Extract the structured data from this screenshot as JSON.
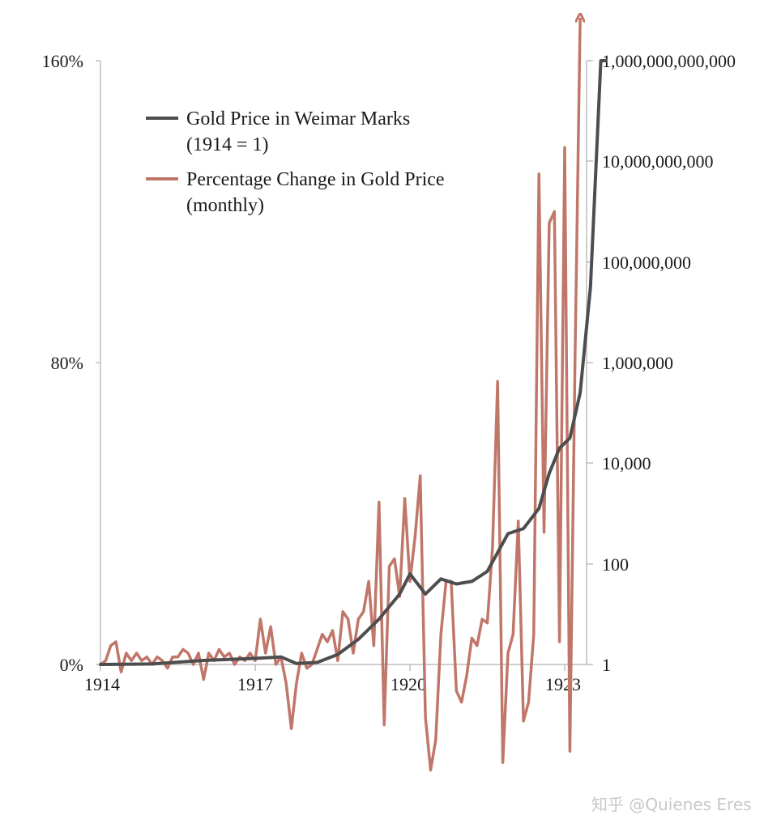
{
  "chart_data": {
    "type": "line",
    "title": "",
    "x_ticks": [
      "1914",
      "1917",
      "1920",
      "1923"
    ],
    "x_range": [
      1914,
      1923.4
    ],
    "y_left": {
      "range_percent": [
        0,
        160
      ],
      "ticks": [
        "160%",
        "80%",
        "0%"
      ],
      "tick_values": [
        160,
        80,
        0
      ]
    },
    "y_right": {
      "scale": "log",
      "range_power": [
        0,
        12
      ],
      "ticks": [
        "1,000,000,000,000",
        "10,000,000,000",
        "100,000,000",
        "1,000,000",
        "10,000",
        "100",
        "1"
      ],
      "tick_powers": [
        12,
        10,
        8,
        6,
        4,
        2,
        0
      ]
    },
    "legend": [
      {
        "label": "Gold Price in Weimar Marks",
        "sublabel": "(1914 = 1)",
        "color": "#4d4d4d"
      },
      {
        "label": "Percentage Change in Gold Price",
        "sublabel": "(monthly)",
        "color": "#c0776a"
      }
    ],
    "series": [
      {
        "name": "Gold Price in Weimar Marks (1914 = 1)",
        "axis": "right",
        "unit": "log10 of price",
        "color": "#4d4d4d",
        "points": [
          [
            1914.0,
            0
          ],
          [
            1915.0,
            0.01
          ],
          [
            1916.0,
            0.08
          ],
          [
            1916.5,
            0.1
          ],
          [
            1917.0,
            0.12
          ],
          [
            1917.5,
            0.15
          ],
          [
            1917.8,
            0.02
          ],
          [
            1918.2,
            0.04
          ],
          [
            1918.6,
            0.2
          ],
          [
            1919.0,
            0.5
          ],
          [
            1919.4,
            0.9
          ],
          [
            1919.8,
            1.4
          ],
          [
            1920.0,
            1.8
          ],
          [
            1920.3,
            1.4
          ],
          [
            1920.6,
            1.7
          ],
          [
            1920.9,
            1.6
          ],
          [
            1921.2,
            1.65
          ],
          [
            1921.5,
            1.85
          ],
          [
            1921.9,
            2.6
          ],
          [
            1922.2,
            2.7
          ],
          [
            1922.5,
            3.1
          ],
          [
            1922.7,
            3.8
          ],
          [
            1922.9,
            4.3
          ],
          [
            1923.1,
            4.5
          ],
          [
            1923.3,
            5.4
          ],
          [
            1923.5,
            7.5
          ],
          [
            1923.7,
            12
          ],
          [
            1923.8,
            12
          ]
        ]
      },
      {
        "name": "Percentage Change in Gold Price (monthly)",
        "axis": "left",
        "unit": "percent",
        "color": "#c0776a",
        "overflow_arrow": true,
        "points": [
          [
            1914.0,
            0
          ],
          [
            1914.1,
            1
          ],
          [
            1914.2,
            5
          ],
          [
            1914.3,
            6
          ],
          [
            1914.4,
            -2
          ],
          [
            1914.5,
            3
          ],
          [
            1914.6,
            1
          ],
          [
            1914.7,
            3
          ],
          [
            1914.8,
            1
          ],
          [
            1914.9,
            2
          ],
          [
            1915.0,
            0
          ],
          [
            1915.1,
            2
          ],
          [
            1915.2,
            1
          ],
          [
            1915.3,
            -1
          ],
          [
            1915.4,
            2
          ],
          [
            1915.5,
            2
          ],
          [
            1915.6,
            4
          ],
          [
            1915.7,
            3
          ],
          [
            1915.8,
            0
          ],
          [
            1915.9,
            3
          ],
          [
            1916.0,
            -4
          ],
          [
            1916.1,
            3
          ],
          [
            1916.2,
            1
          ],
          [
            1916.3,
            4
          ],
          [
            1916.4,
            2
          ],
          [
            1916.5,
            3
          ],
          [
            1916.6,
            0
          ],
          [
            1916.7,
            2
          ],
          [
            1916.8,
            1
          ],
          [
            1916.9,
            3
          ],
          [
            1917.0,
            1
          ],
          [
            1917.1,
            12
          ],
          [
            1917.2,
            3
          ],
          [
            1917.3,
            10
          ],
          [
            1917.4,
            0
          ],
          [
            1917.5,
            2
          ],
          [
            1917.6,
            -5
          ],
          [
            1917.7,
            -17
          ],
          [
            1917.8,
            -5
          ],
          [
            1917.9,
            3
          ],
          [
            1918.0,
            -1
          ],
          [
            1918.1,
            0
          ],
          [
            1918.2,
            4
          ],
          [
            1918.3,
            8
          ],
          [
            1918.4,
            6
          ],
          [
            1918.5,
            9
          ],
          [
            1918.6,
            1
          ],
          [
            1918.7,
            14
          ],
          [
            1918.8,
            12
          ],
          [
            1918.9,
            3
          ],
          [
            1919.0,
            12
          ],
          [
            1919.1,
            14
          ],
          [
            1919.2,
            22
          ],
          [
            1919.3,
            5
          ],
          [
            1919.4,
            43
          ],
          [
            1919.5,
            -16
          ],
          [
            1919.6,
            26
          ],
          [
            1919.7,
            28
          ],
          [
            1919.8,
            18
          ],
          [
            1919.9,
            44
          ],
          [
            1920.0,
            22
          ],
          [
            1920.1,
            34
          ],
          [
            1920.2,
            50
          ],
          [
            1920.3,
            -14
          ],
          [
            1920.4,
            -28
          ],
          [
            1920.5,
            -20
          ],
          [
            1920.6,
            8
          ],
          [
            1920.7,
            22
          ],
          [
            1920.8,
            22
          ],
          [
            1920.9,
            -7
          ],
          [
            1921.0,
            -10
          ],
          [
            1921.1,
            -3
          ],
          [
            1921.2,
            7
          ],
          [
            1921.3,
            5
          ],
          [
            1921.4,
            12
          ],
          [
            1921.5,
            11
          ],
          [
            1921.6,
            31
          ],
          [
            1921.7,
            75
          ],
          [
            1921.8,
            -26
          ],
          [
            1921.9,
            3
          ],
          [
            1922.0,
            8
          ],
          [
            1922.1,
            38
          ],
          [
            1922.2,
            -15
          ],
          [
            1922.3,
            -10
          ],
          [
            1922.4,
            8
          ],
          [
            1922.5,
            130
          ],
          [
            1922.6,
            35
          ],
          [
            1922.7,
            117
          ],
          [
            1922.8,
            120
          ],
          [
            1922.9,
            6
          ],
          [
            1923.0,
            137
          ],
          [
            1923.1,
            -23
          ],
          [
            1923.2,
            80
          ],
          [
            1923.3,
            172
          ]
        ]
      }
    ]
  },
  "footer": {
    "watermark": "知乎 @Quienes Eres"
  }
}
